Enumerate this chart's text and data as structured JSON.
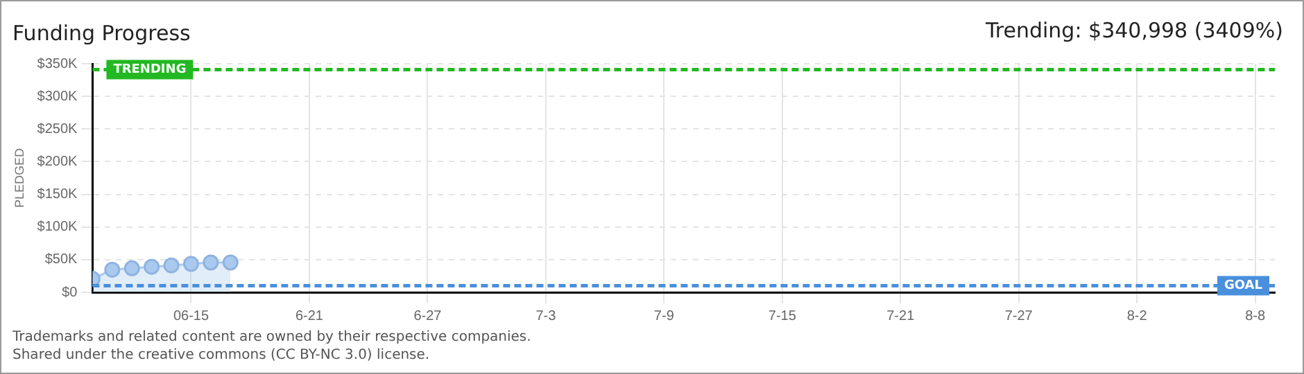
{
  "chart_data": {
    "type": "area",
    "title": "Funding Progress",
    "subtitle": "Trending: $340,998 (3409%)",
    "ylabel": "PLEDGED",
    "x": [
      "--06-10",
      "--06-11",
      "--06-12",
      "--06-13",
      "--06-14",
      "--06-15",
      "--06-16",
      "--06-17"
    ],
    "series": [
      {
        "color": "#a9c9ef",
        "values": [
          20600,
          34600,
          36800,
          39000,
          41200,
          43400,
          45600,
          45600
        ]
      }
    ],
    "xlim": [
      "--06-10",
      "--08-09"
    ],
    "xticks": [
      {
        "value": "--06-15",
        "label": "06-15"
      },
      {
        "value": "--06-21",
        "label": "6-21"
      },
      {
        "value": "--06-27",
        "label": "6-27"
      },
      {
        "value": "--07-03",
        "label": "7-3"
      },
      {
        "value": "--07-09",
        "label": "7-9"
      },
      {
        "value": "--07-15",
        "label": "7-15"
      },
      {
        "value": "--07-21",
        "label": "7-21"
      },
      {
        "value": "--07-27",
        "label": "7-27"
      },
      {
        "value": "--08-02",
        "label": "8-2"
      },
      {
        "value": "--08-08",
        "label": "8-8"
      }
    ],
    "ylim": [
      0,
      350000
    ],
    "yticks": [
      {
        "value": 0,
        "label": "$0"
      },
      {
        "value": 50000,
        "label": "$50K"
      },
      {
        "value": 100000,
        "label": "$100K"
      },
      {
        "value": 150000,
        "label": "$150K"
      },
      {
        "value": 200000,
        "label": "$200K"
      },
      {
        "value": 250000,
        "label": "$250K"
      },
      {
        "value": 300000,
        "label": "$300K"
      },
      {
        "value": 350000,
        "label": "$350K"
      }
    ],
    "ref_lines": [
      {
        "axis": "y",
        "value": 340998,
        "label": "TRENDING",
        "color": "#22b822",
        "line_style": "dashed"
      },
      {
        "axis": "y",
        "value": 10000,
        "label": "GOAL",
        "color": "#4a8fdc",
        "line_style": "dashed"
      }
    ],
    "annotations": [
      "Trademarks and related content are owned by their respective companies.",
      "Shared under the creative commons (CC BY-NC 3.0) license."
    ],
    "grid": true,
    "legend": false,
    "marker": "circle"
  }
}
